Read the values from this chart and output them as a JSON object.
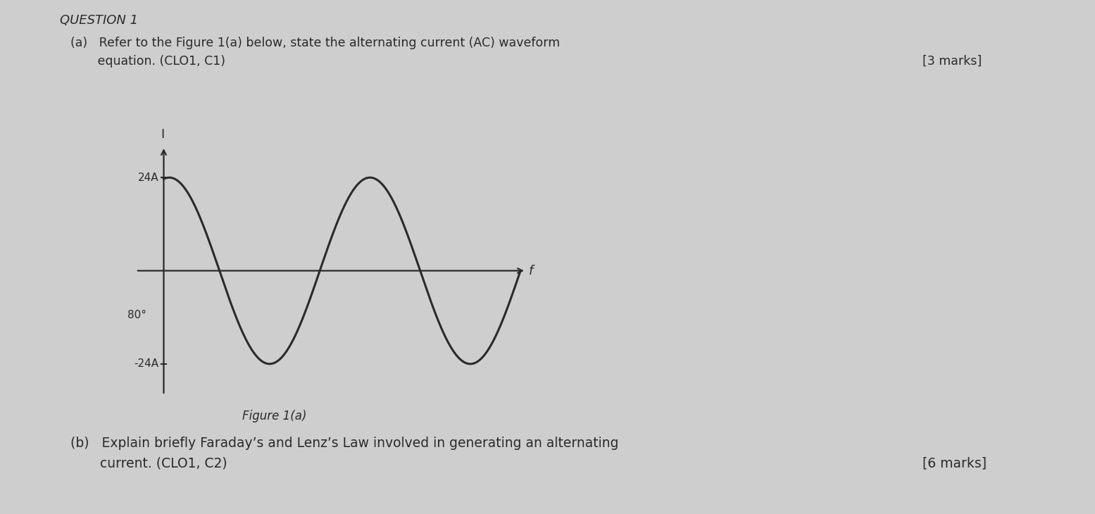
{
  "background_color": "#cecece",
  "title_text": "QUESTION 1",
  "amplitude": 24,
  "phase_shift_deg": 80,
  "ylabel": "I",
  "xlabel": "f",
  "y_tick_labels": [
    "24A",
    "-24A"
  ],
  "x_phase_label": "80°",
  "figure_caption": "Figure 1(a)",
  "wave_color": "#2a2a2a",
  "axis_color": "#2a2a2a",
  "text_color": "#2a2a2a",
  "q_a_part1": "(a)   Refer to the Figure 1(a) below, state the alternating current (AC) waveform",
  "q_a_part2": "       equation. (CLO1, C1)",
  "q_a_marks": "[3 marks]",
  "q_b_part1": "(b)   Explain briefly Faraday’s and Lenz’s Law involved in generating an alternating",
  "q_b_part2": "       current. (CLO1, C2)",
  "q_b_marks": "[6 marks]"
}
